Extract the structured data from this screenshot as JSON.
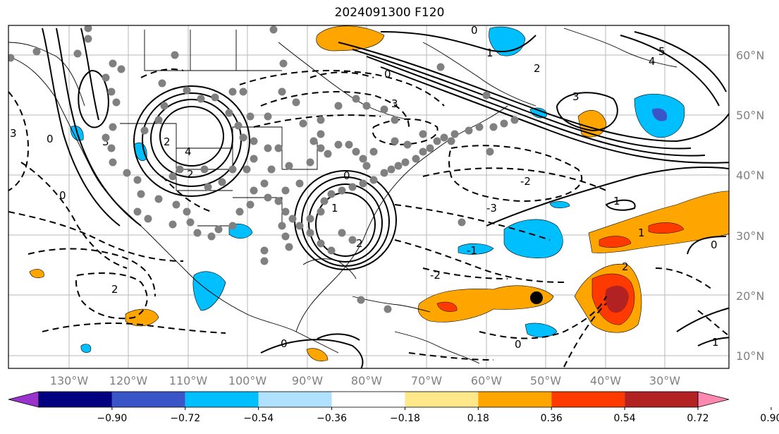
{
  "title": "2024091300 F120",
  "latitudes": [
    "60°N",
    "50°N",
    "40°N",
    "30°N",
    "20°N",
    "10°N"
  ],
  "longitudes": [
    "130°W",
    "120°W",
    "110°W",
    "100°W",
    "90°W",
    "80°W",
    "70°W",
    "60°W",
    "50°W",
    "40°W",
    "30°W"
  ],
  "colorbar": {
    "ticks": [
      "−0.90",
      "−0.72",
      "−0.54",
      "−0.36",
      "−0.18",
      "0.18",
      "0.36",
      "0.54",
      "0.72",
      "0.90"
    ],
    "colors": {
      "under": "#9a32cd",
      "bins": [
        "#000080",
        "#3a55c8",
        "#00bfff",
        "#b0e2ff",
        "#ffffff",
        "#ffe88a",
        "#ffa500",
        "#ff3a00",
        "#b22222"
      ],
      "over": "#ff88b0"
    }
  },
  "contour_labels": [
    "0",
    "0",
    "0",
    "0",
    "0",
    "0",
    "0",
    "0",
    "1",
    "1",
    "1",
    "2",
    "2",
    "2",
    "2",
    "2",
    "3",
    "3",
    "3",
    "3",
    "4",
    "4",
    "5",
    "-2",
    "-3",
    "-1",
    "-2",
    "1",
    "1",
    "2"
  ],
  "colors": {
    "shade_blue": "#00bfff",
    "shade_orange": "#ffa500",
    "shade_red": "#ff3a00",
    "shade_darkred": "#b22222",
    "station_dot": "#808080",
    "storm_marker": "#000000"
  }
}
